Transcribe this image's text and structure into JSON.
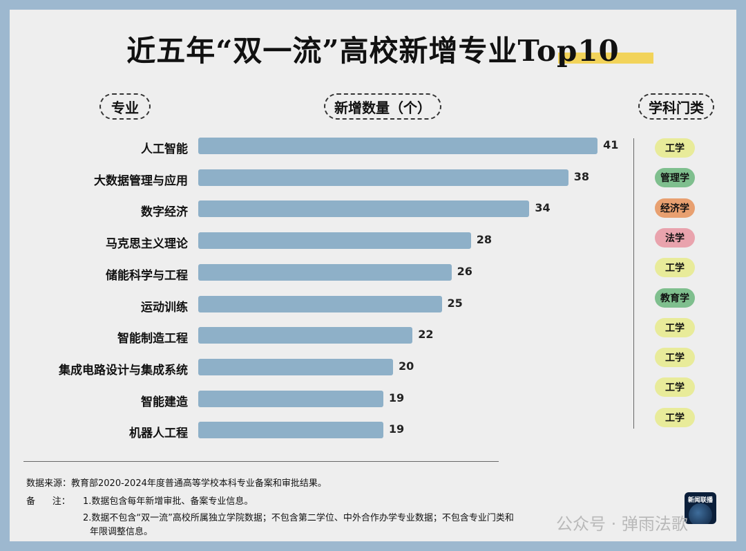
{
  "title": "近五年“双一流”高校新增专业Top10",
  "headers": {
    "major": "专业",
    "count": "新增数量（个）",
    "discipline": "学科门类"
  },
  "chart_data": {
    "type": "bar",
    "orientation": "horizontal",
    "title": "近五年“双一流”高校新增专业Top10",
    "xlabel": "新增数量（个）",
    "ylabel": "专业",
    "categories": [
      "人工智能",
      "大数据管理与应用",
      "数字经济",
      "马克思主义理论",
      "储能科学与工程",
      "运动训练",
      "智能制造工程",
      "集成电路设计与集成系统",
      "智能建造",
      "机器人工程"
    ],
    "values": [
      41,
      38,
      34,
      28,
      26,
      25,
      22,
      20,
      19,
      19
    ],
    "disciplines": [
      "工学",
      "管理学",
      "经济学",
      "法学",
      "工学",
      "教育学",
      "工学",
      "工学",
      "工学",
      "工学"
    ],
    "bar_color": "#8eb0c8",
    "discipline_colors": {
      "工学": "#e8eb9a",
      "管理学": "#7fbf8e",
      "经济学": "#e8a070",
      "法学": "#e9a3ad",
      "教育学": "#7fbf8e"
    }
  },
  "notes": {
    "source": "数据来源：教育部2020-2024年度普通高等学校本科专业备案和审批结果。",
    "remark_label": "备      注：",
    "remark_1": "1.数据包含每年新增审批、备案专业信息。",
    "remark_2": "2.数据不包含“双一流”高校所属独立学院数据；不包含第二学位、中外合作办学专业数据；不包含专业门类和",
    "remark_3": "年限调整信息。"
  },
  "watermark": "公众号 · 弹雨法歌",
  "logo_text": "新闻联播"
}
